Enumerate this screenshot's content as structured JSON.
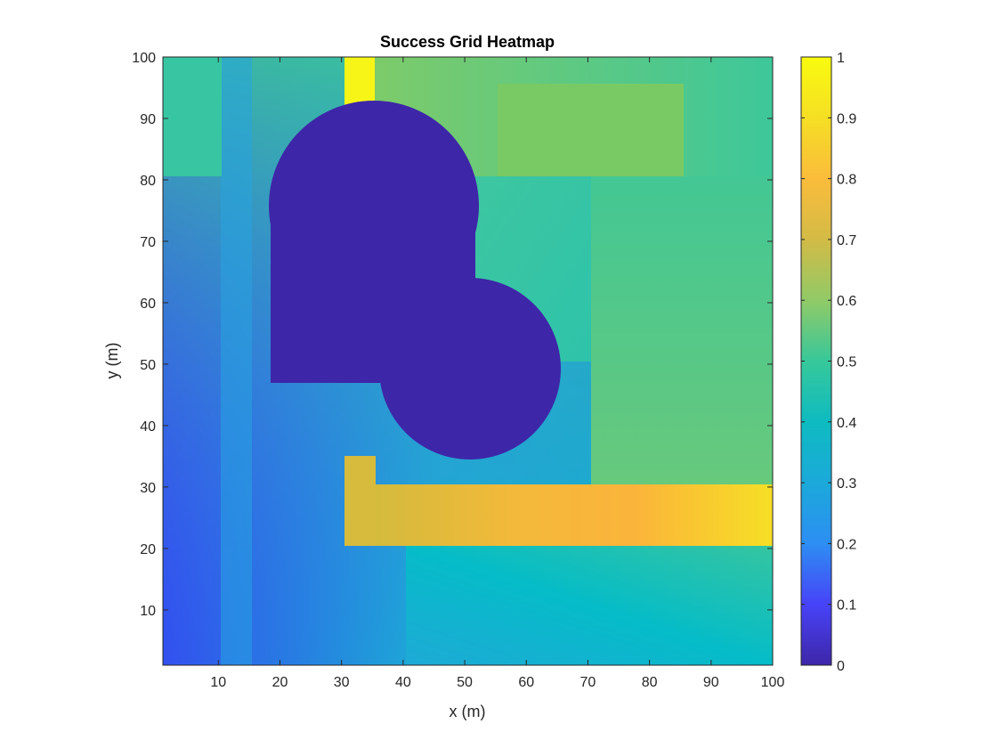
{
  "chart_data": {
    "type": "heatmap",
    "title": "Success Grid Heatmap",
    "xlabel": "x (m)",
    "ylabel": "y (m)",
    "xlim": [
      1,
      100
    ],
    "ylim": [
      1,
      100
    ],
    "xticks": [
      "10",
      "20",
      "30",
      "40",
      "50",
      "60",
      "70",
      "80",
      "90",
      "100"
    ],
    "yticks": [
      "10",
      "20",
      "30",
      "40",
      "50",
      "60",
      "70",
      "80",
      "90",
      "100"
    ],
    "colorbar": {
      "range": [
        0,
        1
      ],
      "ticks": [
        "0",
        "0.1",
        "0.2",
        "0.3",
        "0.4",
        "0.5",
        "0.6",
        "0.7",
        "0.8",
        "0.9",
        "1"
      ],
      "colormap": "parula",
      "stops": [
        "#3e26a8",
        "#4743f8",
        "#2d8ef3",
        "#1ba9da",
        "#0ebbc1",
        "#37c89a",
        "#91ca67",
        "#d3bb46",
        "#fbbc3b",
        "#f5df24",
        "#f9fb0e"
      ]
    },
    "regions": [
      {
        "name": "background",
        "x": [
          1,
          100
        ],
        "y": [
          1,
          100
        ],
        "value_corners": {
          "bottom_left": 0.24,
          "bottom_right": 0.49,
          "top_left": 0.52,
          "top_right": 0.58
        }
      },
      {
        "name": "left strip",
        "x": [
          10,
          15
        ],
        "y": [
          1,
          100
        ],
        "value": 0.37
      },
      {
        "name": "upper-left block",
        "x": [
          1,
          10
        ],
        "y": [
          80,
          100
        ],
        "value": 0.54
      },
      {
        "name": "upper band",
        "x": [
          35,
          100
        ],
        "y": [
          80,
          100
        ],
        "value": 0.63
      },
      {
        "name": "upper-right block",
        "x": [
          55,
          85
        ],
        "y": [
          85,
          95
        ],
        "value": 0.67
      },
      {
        "name": "middle block",
        "x": [
          50,
          70
        ],
        "y": [
          50,
          80
        ],
        "value": 0.52
      },
      {
        "name": "lower band",
        "x": [
          40,
          100
        ],
        "y": [
          1,
          20
        ],
        "value_corners": {
          "left": 0.45,
          "right": 0.52
        }
      },
      {
        "name": "vertical corridor top",
        "x": [
          30,
          35
        ],
        "y": [
          90,
          100
        ],
        "value": 0.97
      },
      {
        "name": "vertical corridor bottom",
        "x": [
          30,
          35
        ],
        "y": [
          20,
          35
        ],
        "value": 0.77
      },
      {
        "name": "horizontal corridor",
        "x": [
          35,
          100
        ],
        "y": [
          20,
          30
        ],
        "value_range": [
          0.77,
          0.93
        ]
      },
      {
        "name": "obstacle",
        "shape": "two overlapping disks",
        "centers": [
          [
            36,
            65
          ],
          [
            52,
            47
          ]
        ],
        "radii": [
          24,
          14
        ],
        "value": 0
      }
    ]
  }
}
